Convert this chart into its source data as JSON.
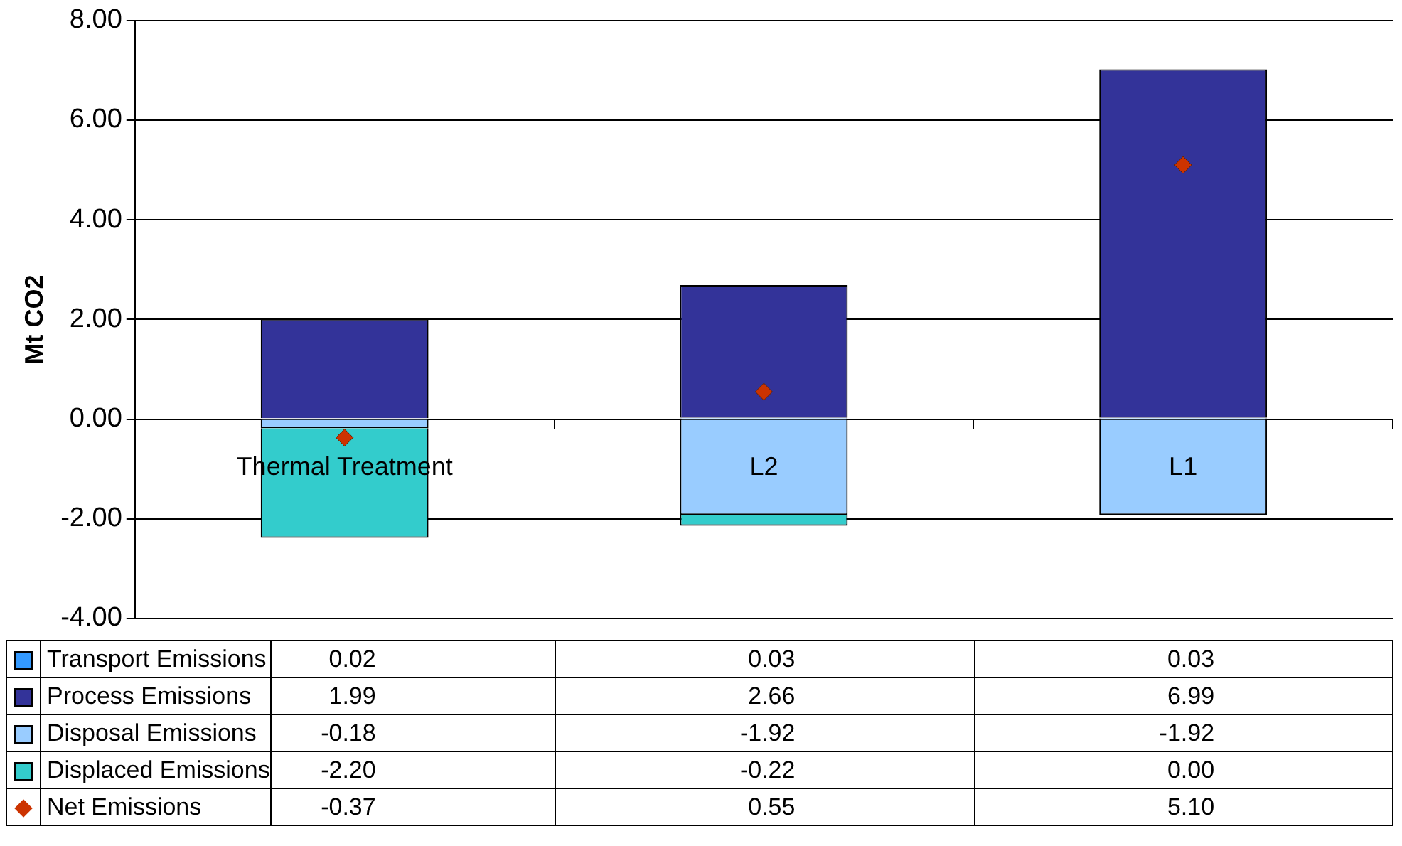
{
  "chart_data": {
    "type": "bar",
    "stacked": true,
    "ylabel": "Mt CO2",
    "categories": [
      "Thermal Treatment",
      "L2",
      "L1"
    ],
    "series": [
      {
        "name": "Transport Emissions",
        "color": "#3399ff",
        "values": [
          0.02,
          0.03,
          0.03
        ],
        "value_labels": [
          "0.02",
          "0.03",
          "0.03"
        ]
      },
      {
        "name": "Process Emissions",
        "color": "#333399",
        "values": [
          1.99,
          2.66,
          6.99
        ],
        "value_labels": [
          "1.99",
          "2.66",
          "6.99"
        ]
      },
      {
        "name": "Disposal Emissions",
        "color": "#99ccff",
        "values": [
          -0.18,
          -1.92,
          -1.92
        ],
        "value_labels": [
          "-0.18",
          "-1.92",
          "-1.92"
        ]
      },
      {
        "name": "Displaced Emissions",
        "color": "#33cccc",
        "values": [
          -2.2,
          -0.22,
          0.0
        ],
        "value_labels": [
          "-2.20",
          "-0.22",
          "0.00"
        ]
      },
      {
        "name": "Net Emissions",
        "type": "scatter",
        "marker": "diamond",
        "color": "#cc3300",
        "x": [
          "Thermal Treatment",
          "L2",
          "L1"
        ],
        "values": [
          -0.37,
          0.55,
          5.1
        ],
        "value_labels": [
          "-0.37",
          "0.55",
          "5.10"
        ]
      }
    ],
    "ylim": [
      -4,
      8
    ],
    "yticks": [
      {
        "value": -4,
        "label": "-4.00"
      },
      {
        "value": -2,
        "label": "-2.00"
      },
      {
        "value": 0,
        "label": "0.00"
      },
      {
        "value": 2,
        "label": "2.00"
      },
      {
        "value": 4,
        "label": "4.00"
      },
      {
        "value": 6,
        "label": "6.00"
      },
      {
        "value": 8,
        "label": "8.00"
      }
    ],
    "grid": "y",
    "legend": "bottom"
  }
}
